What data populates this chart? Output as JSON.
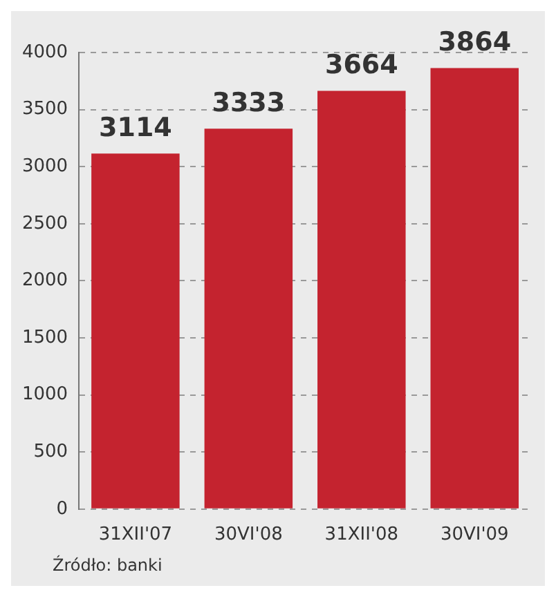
{
  "chart_data": {
    "type": "bar",
    "categories": [
      "31XII'07",
      "30VI'08",
      "31XII'08",
      "30VI'09"
    ],
    "values": [
      3114,
      3333,
      3664,
      3864
    ],
    "color": "#c4232f",
    "ylim": [
      0,
      4000
    ],
    "yticks": [
      0,
      500,
      1000,
      1500,
      2000,
      2500,
      3000,
      3500,
      4000
    ],
    "grid": "y",
    "data_labels": true,
    "annotations": [
      "Źródło: banki"
    ]
  }
}
